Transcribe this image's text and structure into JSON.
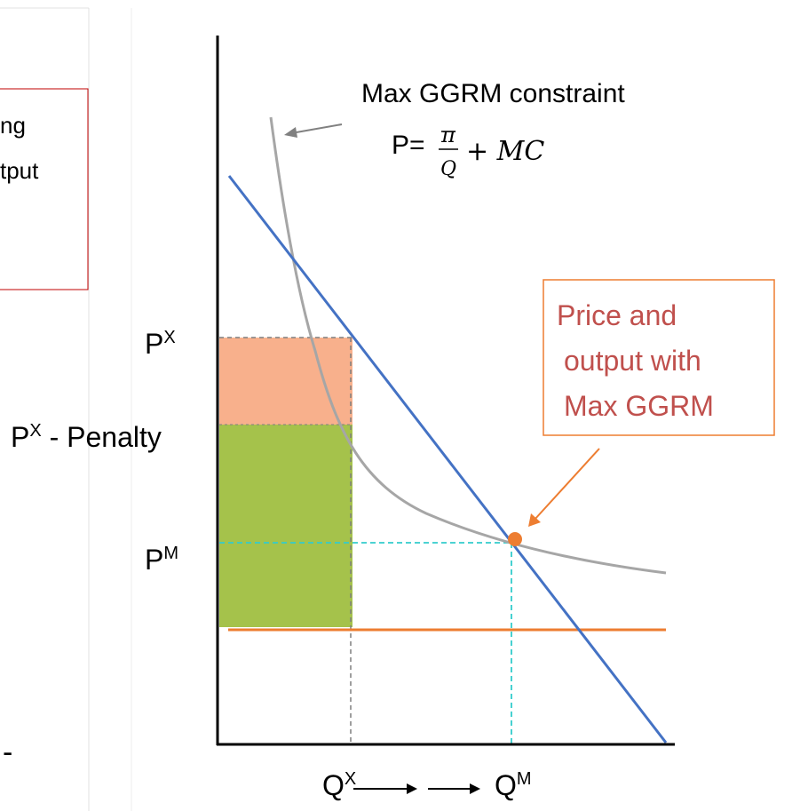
{
  "left_box": {
    "lines": [
      "ng",
      "tput"
    ],
    "color": "#c00000"
  },
  "left_dash": "-",
  "axis_labels": {
    "px": {
      "main": "P",
      "sup": "X"
    },
    "px_penalty": {
      "main": "P",
      "sup": "X",
      "rest": " - Penalty"
    },
    "pm": {
      "main": "P",
      "sup": "M"
    },
    "qx": {
      "main": "Q",
      "sup": "X"
    },
    "qm": {
      "main": "Q",
      "sup": "M"
    }
  },
  "constraint_label": {
    "title": "Max GGRM constraint",
    "formula_prefix": "P=",
    "numerator": "π",
    "denominator": "Q",
    "suffix": "+ MC"
  },
  "callout": {
    "lines": [
      "Price and",
      "output with",
      "Max GGRM"
    ],
    "border_color": "#ed7d31",
    "text_color": "#c55a11"
  },
  "colors": {
    "demand": "#4472c4",
    "constraint_curve": "#a6a6a6",
    "mc_line": "#ed7d31",
    "penalty_area": "#f8b08c",
    "revenue_area": "#a5c24b",
    "guide_cyan": "#33cccc",
    "guide_gray": "#7f7f7f",
    "equilibrium_dot": "#ed7d31"
  }
}
